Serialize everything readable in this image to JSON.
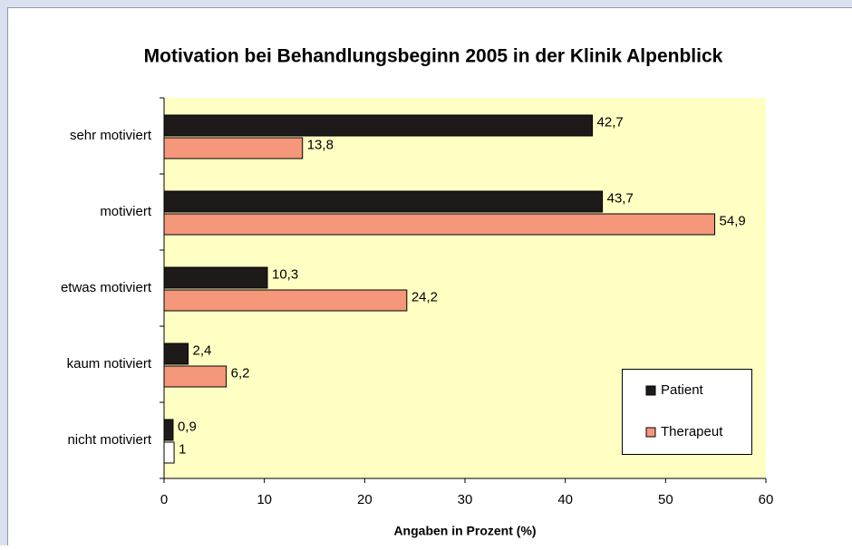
{
  "chart_data": {
    "type": "hbar",
    "title": "Motivation bei Behandlungsbeginn 2005 in der Klinik Alpenblick",
    "xlabel": "Angaben in Prozent (%)",
    "categories": [
      "sehr motiviert",
      "motiviert",
      "etwas motiviert",
      "kaum notiviert",
      "nicht motiviert"
    ],
    "series": [
      {
        "name": "Patient",
        "color": "#1f1a1a",
        "values": [
          42.7,
          43.7,
          10.3,
          2.4,
          0.9
        ],
        "value_labels": [
          "42,7",
          "43,7",
          "10,3",
          "2,4",
          "0,9"
        ]
      },
      {
        "name": "Therapeut",
        "color": "#f4977a",
        "colors": [
          "#f4977a",
          "#f4977a",
          "#f4977a",
          "#f4977a",
          "#ffffff"
        ],
        "values": [
          13.8,
          54.9,
          24.2,
          6.2,
          1
        ],
        "value_labels": [
          "13,8",
          "54,9",
          "24,2",
          "6,2",
          "1"
        ]
      }
    ],
    "xlim": [
      0,
      60
    ],
    "xticks": [
      0,
      10,
      20,
      30,
      40,
      50,
      60
    ],
    "legend": "lower right"
  }
}
